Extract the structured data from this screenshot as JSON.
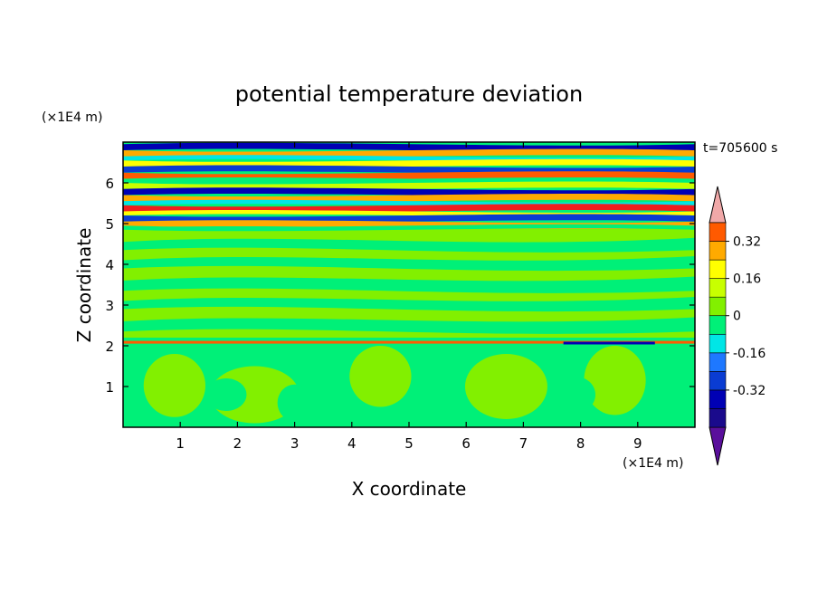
{
  "chart_data": {
    "type": "heatmap",
    "title": "potential temperature deviation",
    "xlabel": "X coordinate",
    "ylabel": "Z coordinate",
    "x_unit": "(×1E4 m)",
    "y_unit": "(×1E4 m)",
    "time_label": "t=705600 s",
    "xlim": [
      0,
      10
    ],
    "ylim": [
      0,
      7
    ],
    "x_ticks": [
      1,
      2,
      3,
      4,
      5,
      6,
      7,
      8,
      9
    ],
    "y_ticks": [
      1,
      2,
      3,
      4,
      5,
      6
    ],
    "colorbar": {
      "levels": [
        -0.48,
        -0.4,
        -0.32,
        -0.24,
        -0.16,
        -0.08,
        0,
        0.08,
        0.16,
        0.24,
        0.32,
        0.4
      ],
      "colors": [
        "#5a0f9c",
        "#1a0a8c",
        "#0000b4",
        "#0a3cd2",
        "#1e78ff",
        "#00e6e6",
        "#00f078",
        "#82f000",
        "#c8ff00",
        "#ffff00",
        "#ffaa00",
        "#ff5a00",
        "#f01e1e",
        "#f0a8a8"
      ],
      "tick_labels": [
        "0.32",
        "0.16",
        "0",
        "-0.16",
        "-0.32"
      ],
      "tick_values": [
        0.32,
        0.16,
        0,
        -0.16,
        -0.32
      ]
    },
    "field_layers": [
      {
        "z_range": [
          0,
          2.1
        ],
        "description": "convective plumes of slightly negative/neutral anomaly",
        "dominant": "#00f078"
      },
      {
        "z_range": [
          2.0,
          2.15
        ],
        "description": "thin strong anomaly line",
        "dominant": "#ff5a00"
      },
      {
        "z_range": [
          2.2,
          4.9
        ],
        "description": "mostly near-zero positive anomaly with weak bands",
        "dominant": "#82f000"
      },
      {
        "z_range": [
          4.9,
          7.0
        ],
        "description": "strong alternating warm/cold layered anomalies",
        "dominant": "#ff5a00"
      }
    ]
  }
}
